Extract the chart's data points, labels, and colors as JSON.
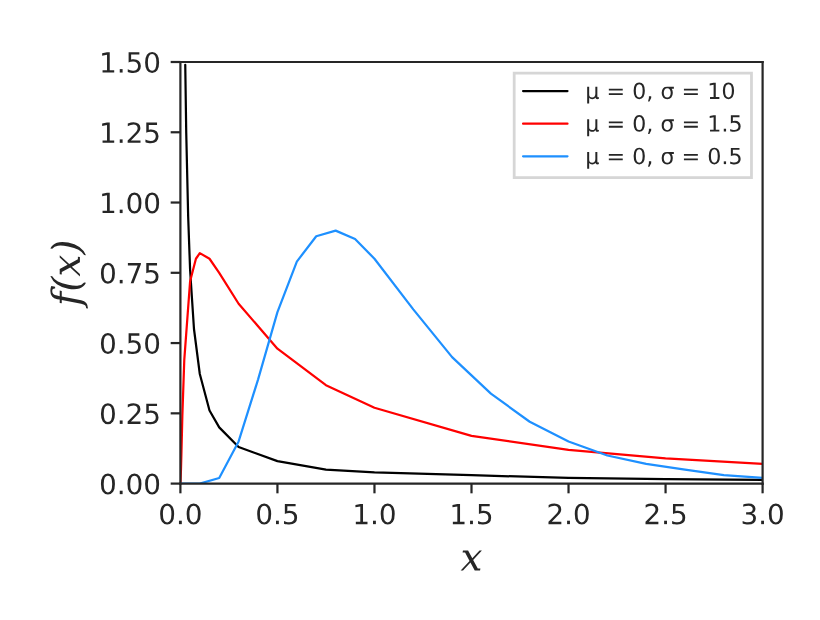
{
  "chart_data": {
    "type": "line",
    "xlabel": "x",
    "ylabel": "f(x)",
    "xlim": [
      0,
      3
    ],
    "ylim": [
      0,
      1.5
    ],
    "xticks": [
      {
        "value": 0,
        "label": "0.0"
      },
      0.5,
      {
        "value": 1,
        "label": "1.0"
      },
      1.5,
      {
        "value": 2,
        "label": "2.0"
      },
      2.5,
      {
        "value": 3,
        "label": "3.0"
      }
    ],
    "yticks": [
      {
        "value": 0,
        "label": "0.00"
      },
      0.25,
      {
        "value": 0.5,
        "label": "0.50"
      },
      0.75,
      {
        "value": 1,
        "label": "1.00"
      },
      1.25,
      {
        "value": 1.5,
        "label": "1.50"
      }
    ],
    "legend": "top right",
    "grid": false,
    "marker": "none",
    "line_style": "solid",
    "series": [
      {
        "name": "μ = 0, σ = 10",
        "color": "#000000",
        "x": [
          0.025,
          0.03,
          0.04,
          0.05,
          0.07,
          0.1,
          0.15,
          0.2,
          0.3,
          0.5,
          0.75,
          1,
          1.5,
          2,
          2.5,
          3
        ],
        "values": [
          1.49,
          1.25,
          0.95,
          0.76,
          0.55,
          0.39,
          0.26,
          0.2,
          0.13,
          0.08,
          0.05,
          0.04,
          0.03,
          0.02,
          0.016,
          0.013
        ]
      },
      {
        "name": "μ = 0, σ = 1.5",
        "color": "#ff0000",
        "x": [
          0,
          0.003,
          0.005,
          0.01,
          0.02,
          0.05,
          0.08,
          0.1,
          0.15,
          0.2,
          0.3,
          0.5,
          0.75,
          1,
          1.5,
          2,
          2.5,
          3
        ],
        "values": [
          0,
          0.05,
          0.1,
          0.24,
          0.44,
          0.72,
          0.8,
          0.82,
          0.8,
          0.75,
          0.64,
          0.48,
          0.35,
          0.27,
          0.17,
          0.12,
          0.09,
          0.07
        ]
      },
      {
        "name": "μ = 0, σ = 0.5",
        "color": "#1e90ff",
        "x": [
          0,
          0.1,
          0.2,
          0.3,
          0.4,
          0.5,
          0.6,
          0.7,
          0.8,
          0.9,
          1,
          1.2,
          1.4,
          1.6,
          1.8,
          2,
          2.2,
          2.4,
          2.6,
          2.8,
          3
        ],
        "values": [
          0,
          0,
          0.02,
          0.15,
          0.37,
          0.61,
          0.79,
          0.88,
          0.9,
          0.87,
          0.8,
          0.62,
          0.45,
          0.32,
          0.22,
          0.15,
          0.1,
          0.07,
          0.05,
          0.03,
          0.02
        ]
      }
    ]
  }
}
